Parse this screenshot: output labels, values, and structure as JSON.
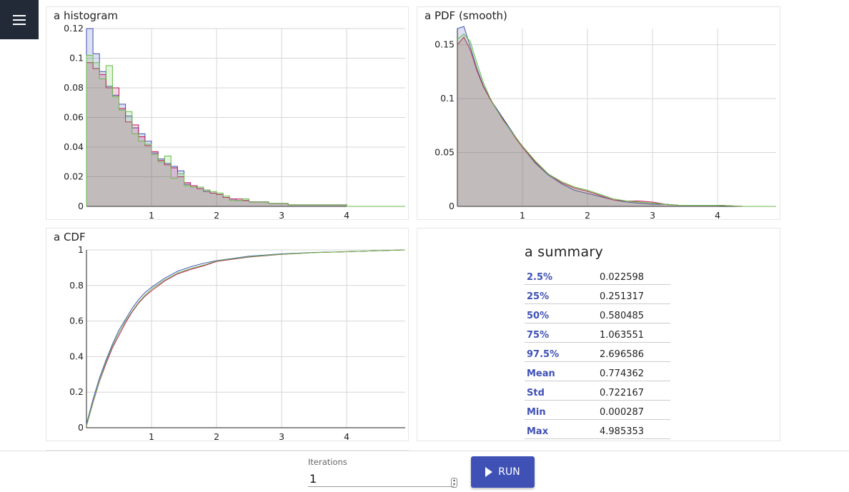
{
  "colors": {
    "blue": "#3f51b5",
    "red": "#c2185b",
    "green": "#66bb46",
    "fill": "#cfc5c8",
    "menu_bg": "#222a38"
  },
  "histogram": {
    "title": "a histogram",
    "chart_data": {
      "type": "area",
      "title": "a histogram",
      "xlim": [
        0,
        4.9
      ],
      "ylim": [
        0,
        0.12
      ],
      "x_ticks": [
        "1",
        "2",
        "3",
        "4"
      ],
      "y_ticks": [
        "0",
        "0.02",
        "0.04",
        "0.06",
        "0.08",
        "0.1",
        "0.12"
      ],
      "bin_width": 0.1,
      "series": [
        {
          "color": "blue",
          "values": [
            0.12,
            0.103,
            0.091,
            0.081,
            0.075,
            0.069,
            0.061,
            0.053,
            0.049,
            0.044,
            0.036,
            0.032,
            0.029,
            0.027,
            0.024,
            0.015,
            0.014,
            0.012,
            0.01,
            0.009,
            0.008,
            0.006,
            0.005,
            0.004,
            0.004,
            0.003,
            0.003,
            0.003,
            0.002,
            0.002,
            0.002,
            0.001,
            0.001,
            0.001,
            0.001,
            0.001,
            0.001,
            0.001,
            0.001,
            0.001,
            0,
            0,
            0,
            0,
            0,
            0,
            0,
            0,
            0
          ]
        },
        {
          "color": "red",
          "values": [
            0.097,
            0.093,
            0.089,
            0.08,
            0.08,
            0.066,
            0.057,
            0.055,
            0.047,
            0.041,
            0.037,
            0.031,
            0.028,
            0.026,
            0.02,
            0.016,
            0.014,
            0.012,
            0.011,
            0.009,
            0.008,
            0.006,
            0.005,
            0.005,
            0.004,
            0.003,
            0.003,
            0.003,
            0.002,
            0.002,
            0.002,
            0.001,
            0.001,
            0.001,
            0.001,
            0.001,
            0.001,
            0.001,
            0.001,
            0.001,
            0,
            0,
            0,
            0,
            0,
            0,
            0,
            0,
            0
          ]
        },
        {
          "color": "green",
          "values": [
            0.102,
            0.097,
            0.086,
            0.095,
            0.074,
            0.065,
            0.064,
            0.049,
            0.044,
            0.042,
            0.035,
            0.03,
            0.034,
            0.019,
            0.022,
            0.014,
            0.013,
            0.013,
            0.011,
            0.01,
            0.009,
            0.007,
            0.004,
            0.004,
            0.005,
            0.003,
            0.003,
            0.003,
            0.002,
            0.002,
            0.002,
            0.001,
            0.001,
            0.001,
            0.001,
            0.001,
            0.001,
            0.001,
            0.001,
            0.001,
            0,
            0,
            0,
            0,
            0,
            0,
            0,
            0,
            0
          ]
        }
      ]
    }
  },
  "pdf": {
    "title": "a PDF (smooth)",
    "chart_data": {
      "type": "area",
      "title": "a PDF (smooth)",
      "xlim": [
        0,
        4.9
      ],
      "ylim": [
        0,
        0.165
      ],
      "x_ticks": [
        "1",
        "2",
        "3",
        "4"
      ],
      "y_ticks": [
        "0",
        "0.05",
        "0.1",
        "0.15"
      ],
      "x": [
        0,
        0.1,
        0.2,
        0.3,
        0.4,
        0.5,
        0.6,
        0.7,
        0.8,
        0.9,
        1,
        1.2,
        1.4,
        1.6,
        1.8,
        2,
        2.2,
        2.4,
        2.6,
        2.8,
        3,
        3.2,
        3.4,
        3.6,
        3.8,
        4,
        4.4,
        4.9
      ],
      "series": [
        {
          "color": "blue",
          "values": [
            0.165,
            0.167,
            0.148,
            0.128,
            0.112,
            0.1,
            0.091,
            0.082,
            0.073,
            0.064,
            0.055,
            0.04,
            0.029,
            0.021,
            0.015,
            0.012,
            0.009,
            0.006,
            0.004,
            0.003,
            0.002,
            0.002,
            0.001,
            0.001,
            0.001,
            0.001,
            0,
            0
          ]
        },
        {
          "color": "red",
          "values": [
            0.15,
            0.157,
            0.145,
            0.126,
            0.111,
            0.1,
            0.09,
            0.081,
            0.072,
            0.063,
            0.055,
            0.041,
            0.03,
            0.022,
            0.017,
            0.014,
            0.01,
            0.006,
            0.005,
            0.005,
            0.004,
            0.002,
            0.001,
            0.001,
            0.001,
            0.001,
            0,
            0
          ]
        },
        {
          "color": "green",
          "values": [
            0.155,
            0.16,
            0.153,
            0.133,
            0.115,
            0.101,
            0.09,
            0.08,
            0.072,
            0.064,
            0.056,
            0.042,
            0.03,
            0.023,
            0.018,
            0.015,
            0.011,
            0.007,
            0.005,
            0.004,
            0.003,
            0.002,
            0.001,
            0.001,
            0.001,
            0.001,
            0,
            0
          ]
        }
      ]
    }
  },
  "cdf": {
    "title": "a CDF",
    "chart_data": {
      "type": "line",
      "title": "a CDF",
      "xlim": [
        0,
        4.9
      ],
      "ylim": [
        0,
        1.0
      ],
      "x_ticks": [
        "1",
        "2",
        "3",
        "4"
      ],
      "y_ticks": [
        "0",
        "0.2",
        "0.4",
        "0.6",
        "0.8",
        "1"
      ],
      "x": [
        0,
        0.1,
        0.2,
        0.3,
        0.4,
        0.5,
        0.6,
        0.7,
        0.8,
        0.9,
        1,
        1.2,
        1.4,
        1.6,
        1.8,
        2,
        2.5,
        3,
        3.5,
        4,
        4.5,
        4.9
      ],
      "series": [
        {
          "color": "blue",
          "values": [
            0.02,
            0.16,
            0.28,
            0.38,
            0.47,
            0.55,
            0.61,
            0.67,
            0.72,
            0.76,
            0.79,
            0.84,
            0.88,
            0.905,
            0.925,
            0.94,
            0.965,
            0.978,
            0.986,
            0.99,
            0.996,
            1.0
          ]
        },
        {
          "color": "red",
          "values": [
            0.01,
            0.14,
            0.26,
            0.36,
            0.45,
            0.52,
            0.59,
            0.65,
            0.7,
            0.74,
            0.77,
            0.825,
            0.865,
            0.89,
            0.91,
            0.935,
            0.96,
            0.975,
            0.985,
            0.99,
            0.996,
            1.0
          ]
        },
        {
          "color": "green",
          "values": [
            0.01,
            0.145,
            0.265,
            0.37,
            0.46,
            0.535,
            0.6,
            0.655,
            0.705,
            0.745,
            0.78,
            0.83,
            0.87,
            0.895,
            0.915,
            0.938,
            0.962,
            0.976,
            0.985,
            0.99,
            0.996,
            1.0
          ]
        }
      ]
    }
  },
  "summary": {
    "title": "a summary",
    "rows": [
      {
        "key": "2.5%",
        "value": "0.022598"
      },
      {
        "key": "25%",
        "value": "0.251317"
      },
      {
        "key": "50%",
        "value": "0.580485"
      },
      {
        "key": "75%",
        "value": "1.063551"
      },
      {
        "key": "97.5%",
        "value": "2.696586"
      },
      {
        "key": "Mean",
        "value": "0.774362"
      },
      {
        "key": "Std",
        "value": "0.722167"
      },
      {
        "key": "Min",
        "value": "0.000287"
      },
      {
        "key": "Max",
        "value": "4.985353"
      }
    ]
  },
  "controls": {
    "iterations_label": "Iterations",
    "iterations_value": "1",
    "run_label": "RUN"
  },
  "icons": {
    "menu": "hamburger-menu-icon",
    "run": "play-icon"
  }
}
